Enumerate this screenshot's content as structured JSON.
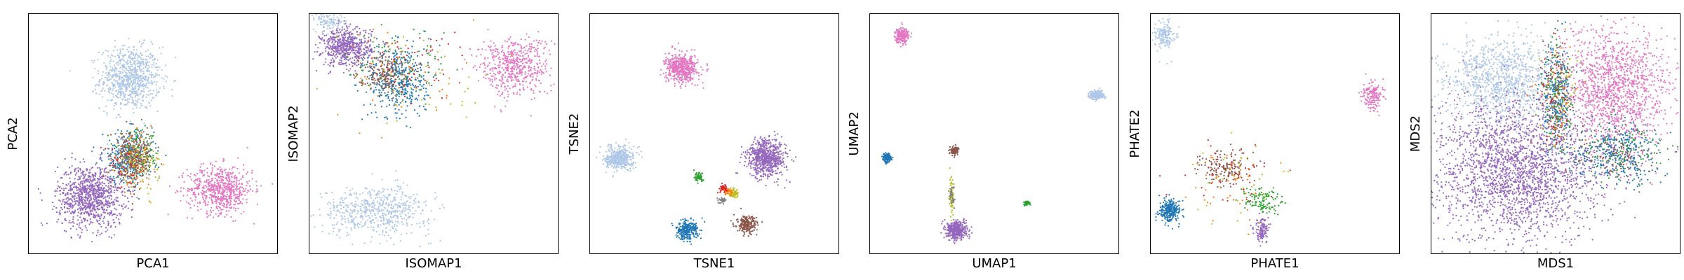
{
  "chart_data": [
    {
      "type": "scatter",
      "xlabel": "PCA1",
      "ylabel": "PCA2",
      "xticks": [],
      "yticks": [],
      "xlim": [
        0,
        100
      ],
      "ylim": [
        0,
        100
      ],
      "grid": false,
      "legend": "none",
      "series": [
        {
          "color": "#aec7e8",
          "clusters": [
            {
              "x": 41,
              "y": 73,
              "sx": 6,
              "sy": 6.5,
              "n": 1500
            }
          ]
        },
        {
          "color": "#e377c2",
          "clusters": [
            {
              "x": 77,
              "y": 27,
              "sx": 6.5,
              "sy": 5,
              "n": 1200
            }
          ]
        },
        {
          "color": "#9467bd",
          "clusters": [
            {
              "x": 25,
              "y": 24,
              "sx": 6.5,
              "sy": 6.5,
              "n": 1800
            }
          ]
        },
        {
          "color": "#1f77b4",
          "clusters": [
            {
              "x": 40,
              "y": 40,
              "sx": 5,
              "sy": 5.5,
              "n": 600
            }
          ]
        },
        {
          "color": "#ff7f0e",
          "clusters": [
            {
              "x": 42,
              "y": 39,
              "sx": 4,
              "sy": 5,
              "n": 200
            }
          ]
        },
        {
          "color": "#2ca02c",
          "clusters": [
            {
              "x": 44,
              "y": 41,
              "sx": 4,
              "sy": 5,
              "n": 200
            }
          ]
        },
        {
          "color": "#d62728",
          "clusters": [
            {
              "x": 41,
              "y": 38,
              "sx": 4,
              "sy": 5,
              "n": 200
            }
          ]
        },
        {
          "color": "#8c564b",
          "clusters": [
            {
              "x": 43,
              "y": 40,
              "sx": 4,
              "sy": 5,
              "n": 200
            }
          ]
        },
        {
          "color": "#bcbd22",
          "clusters": [
            {
              "x": 45,
              "y": 39,
              "sx": 4,
              "sy": 5,
              "n": 150
            }
          ]
        },
        {
          "color": "#7f7f7f",
          "clusters": [
            {
              "x": 42,
              "y": 42,
              "sx": 4,
              "sy": 5,
              "n": 150
            }
          ]
        }
      ]
    },
    {
      "type": "scatter",
      "xlabel": "ISOMAP1",
      "ylabel": "ISOMAP2",
      "xticks": [],
      "yticks": [],
      "xlim": [
        0,
        100
      ],
      "ylim": [
        0,
        100
      ],
      "grid": false,
      "legend": "none",
      "series": [
        {
          "color": "#9467bd",
          "clusters": [
            {
              "x": 15,
              "y": 86,
              "sx": 5,
              "sy": 4,
              "n": 1100
            }
          ]
        },
        {
          "color": "#aec7e8",
          "clusters": [
            {
              "x": 27,
              "y": 18,
              "sx": 11,
              "sy": 5,
              "n": 1100
            },
            {
              "x": 8,
              "y": 97,
              "sx": 3,
              "sy": 2,
              "n": 200
            }
          ]
        },
        {
          "color": "#1f77b4",
          "clusters": [
            {
              "x": 36,
              "y": 72,
              "sx": 6,
              "sy": 8,
              "n": 800
            }
          ]
        },
        {
          "color": "#8c564b",
          "clusters": [
            {
              "x": 30,
              "y": 76,
              "sx": 5,
              "sy": 4,
              "n": 350
            }
          ]
        },
        {
          "color": "#e377c2",
          "clusters": [
            {
              "x": 82,
              "y": 78,
              "sx": 7,
              "sy": 6,
              "n": 1000
            }
          ]
        },
        {
          "color": "#2ca02c",
          "clusters": [
            {
              "x": 40,
              "y": 80,
              "sx": 12,
              "sy": 8,
              "n": 120
            }
          ]
        },
        {
          "color": "#ff7f0e",
          "clusters": [
            {
              "x": 38,
              "y": 76,
              "sx": 12,
              "sy": 10,
              "n": 100
            }
          ]
        },
        {
          "color": "#d62728",
          "clusters": [
            {
              "x": 42,
              "y": 78,
              "sx": 12,
              "sy": 8,
              "n": 100
            }
          ]
        },
        {
          "color": "#bcbd22",
          "clusters": [
            {
              "x": 45,
              "y": 72,
              "sx": 14,
              "sy": 10,
              "n": 80
            }
          ]
        }
      ]
    },
    {
      "type": "scatter",
      "xlabel": "TSNE1",
      "ylabel": "TSNE2",
      "xticks": [],
      "yticks": [],
      "xlim": [
        0,
        100
      ],
      "ylim": [
        0,
        100
      ],
      "grid": false,
      "legend": "none",
      "series": [
        {
          "color": "#e377c2",
          "clusters": [
            {
              "x": 37,
              "y": 77,
              "sx": 3.2,
              "sy": 2.8,
              "n": 1000
            }
          ]
        },
        {
          "color": "#aec7e8",
          "clusters": [
            {
              "x": 12,
              "y": 40,
              "sx": 2.8,
              "sy": 2.4,
              "n": 800
            }
          ]
        },
        {
          "color": "#9467bd",
          "clusters": [
            {
              "x": 71,
              "y": 40,
              "sx": 3.8,
              "sy": 4,
              "n": 1300
            }
          ]
        },
        {
          "color": "#1f77b4",
          "clusters": [
            {
              "x": 39,
              "y": 10,
              "sx": 2.2,
              "sy": 2,
              "n": 500
            }
          ]
        },
        {
          "color": "#8c564b",
          "clusters": [
            {
              "x": 63,
              "y": 12,
              "sx": 2,
              "sy": 1.8,
              "n": 400
            }
          ]
        },
        {
          "color": "#2ca02c",
          "clusters": [
            {
              "x": 44,
              "y": 32,
              "sx": 1,
              "sy": 0.9,
              "n": 120
            }
          ]
        },
        {
          "color": "#d62728",
          "clusters": [
            {
              "x": 54,
              "y": 27,
              "sx": 0.9,
              "sy": 0.8,
              "n": 100
            }
          ]
        },
        {
          "color": "#bcbd22",
          "clusters": [
            {
              "x": 58,
              "y": 25,
              "sx": 1,
              "sy": 0.9,
              "n": 100
            }
          ]
        },
        {
          "color": "#7f7f7f",
          "clusters": [
            {
              "x": 53,
              "y": 22,
              "sx": 0.8,
              "sy": 0.7,
              "n": 60
            }
          ]
        },
        {
          "color": "#ff7f0e",
          "clusters": [
            {
              "x": 56,
              "y": 26,
              "sx": 0.8,
              "sy": 0.7,
              "n": 50
            }
          ]
        }
      ]
    },
    {
      "type": "scatter",
      "xlabel": "UMAP1",
      "ylabel": "UMAP2",
      "xticks": [],
      "yticks": [],
      "xlim": [
        0,
        100
      ],
      "ylim": [
        0,
        100
      ],
      "grid": false,
      "legend": "none",
      "series": [
        {
          "color": "#e377c2",
          "clusters": [
            {
              "x": 13,
              "y": 91,
              "sx": 1.4,
              "sy": 1.6,
              "n": 400
            }
          ]
        },
        {
          "color": "#aec7e8",
          "clusters": [
            {
              "x": 91,
              "y": 66,
              "sx": 1.5,
              "sy": 0.9,
              "n": 400
            }
          ]
        },
        {
          "color": "#1f77b4",
          "clusters": [
            {
              "x": 7,
              "y": 40,
              "sx": 0.8,
              "sy": 0.9,
              "n": 250
            }
          ]
        },
        {
          "color": "#8c564b",
          "clusters": [
            {
              "x": 34,
              "y": 43,
              "sx": 0.8,
              "sy": 0.9,
              "n": 200
            }
          ]
        },
        {
          "color": "#9467bd",
          "clusters": [
            {
              "x": 35,
              "y": 10,
              "sx": 2,
              "sy": 1.8,
              "n": 800
            }
          ]
        },
        {
          "color": "#bcbd22",
          "clusters": [
            {
              "x": 33,
              "y": 24,
              "sx": 0.5,
              "sy": 4,
              "n": 120
            }
          ]
        },
        {
          "color": "#7f7f7f",
          "clusters": [
            {
              "x": 33,
              "y": 25,
              "sx": 0.5,
              "sy": 3,
              "n": 60
            }
          ]
        },
        {
          "color": "#2ca02c",
          "clusters": [
            {
              "x": 63,
              "y": 21,
              "sx": 0.6,
              "sy": 0.4,
              "n": 60
            }
          ]
        }
      ]
    },
    {
      "type": "scatter",
      "xlabel": "PHATE1",
      "ylabel": "PHATE2",
      "xticks": [],
      "yticks": [],
      "xlim": [
        0,
        100
      ],
      "ylim": [
        0,
        100
      ],
      "grid": false,
      "legend": "none",
      "series": [
        {
          "color": "#aec7e8",
          "clusters": [
            {
              "x": 6,
              "y": 91,
              "sx": 2,
              "sy": 3,
              "n": 300
            }
          ]
        },
        {
          "color": "#e377c2",
          "clusters": [
            {
              "x": 89,
              "y": 66,
              "sx": 2,
              "sy": 3,
              "n": 300
            }
          ]
        },
        {
          "color": "#1f77b4",
          "clusters": [
            {
              "x": 8,
              "y": 18,
              "sx": 2.2,
              "sy": 2.2,
              "n": 500
            }
          ]
        },
        {
          "color": "#8c564b",
          "clusters": [
            {
              "x": 30,
              "y": 36,
              "sx": 5,
              "sy": 4,
              "n": 300
            }
          ]
        },
        {
          "color": "#2ca02c",
          "clusters": [
            {
              "x": 44,
              "y": 22,
              "sx": 4,
              "sy": 2.5,
              "n": 220
            }
          ]
        },
        {
          "color": "#9467bd",
          "clusters": [
            {
              "x": 45,
              "y": 10,
              "sx": 1.6,
              "sy": 2.5,
              "n": 220
            }
          ]
        },
        {
          "color": "#ff7f0e",
          "clusters": [
            {
              "x": 30,
              "y": 30,
              "sx": 8,
              "sy": 7,
              "n": 80
            }
          ]
        },
        {
          "color": "#d62728",
          "clusters": [
            {
              "x": 32,
              "y": 32,
              "sx": 8,
              "sy": 7,
              "n": 80
            }
          ]
        },
        {
          "color": "#bcbd22",
          "clusters": [
            {
              "x": 35,
              "y": 30,
              "sx": 8,
              "sy": 8,
              "n": 60
            }
          ]
        }
      ]
    },
    {
      "type": "scatter",
      "xlabel": "MDS1",
      "ylabel": "MDS2",
      "xticks": [],
      "yticks": [],
      "xlim": [
        0,
        100
      ],
      "ylim": [
        0,
        100
      ],
      "grid": false,
      "legend": "none",
      "series": [
        {
          "color": "#aec7e8",
          "clusters": [
            {
              "x": 28,
              "y": 72,
              "sx": 11,
              "sy": 9,
              "n": 2000
            }
          ]
        },
        {
          "color": "#e377c2",
          "clusters": [
            {
              "x": 74,
              "y": 68,
              "sx": 11,
              "sy": 13,
              "n": 2500
            }
          ]
        },
        {
          "color": "#9467bd",
          "clusters": [
            {
              "x": 35,
              "y": 35,
              "sx": 17,
              "sy": 14,
              "n": 4200
            }
          ]
        },
        {
          "color": "#1f77b4",
          "clusters": [
            {
              "x": 50,
              "y": 66,
              "sx": 3,
              "sy": 12,
              "n": 500
            },
            {
              "x": 75,
              "y": 42,
              "sx": 9,
              "sy": 6,
              "n": 600
            }
          ]
        },
        {
          "color": "#2ca02c",
          "clusters": [
            {
              "x": 50,
              "y": 64,
              "sx": 3,
              "sy": 12,
              "n": 200
            },
            {
              "x": 76,
              "y": 42,
              "sx": 9,
              "sy": 7,
              "n": 200
            }
          ]
        },
        {
          "color": "#8c564b",
          "clusters": [
            {
              "x": 50,
              "y": 68,
              "sx": 3,
              "sy": 12,
              "n": 200
            },
            {
              "x": 74,
              "y": 41,
              "sx": 9,
              "sy": 6,
              "n": 200
            }
          ]
        },
        {
          "color": "#ff7f0e",
          "clusters": [
            {
              "x": 51,
              "y": 66,
              "sx": 4,
              "sy": 12,
              "n": 100
            }
          ]
        },
        {
          "color": "#d62728",
          "clusters": [
            {
              "x": 49,
              "y": 66,
              "sx": 4,
              "sy": 12,
              "n": 100
            }
          ]
        },
        {
          "color": "#bcbd22",
          "clusters": [
            {
              "x": 52,
              "y": 70,
              "sx": 4,
              "sy": 10,
              "n": 80
            }
          ]
        }
      ]
    }
  ]
}
